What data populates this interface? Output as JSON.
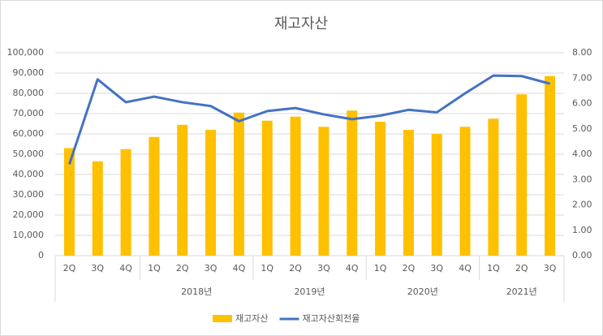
{
  "chart_data": {
    "type": "bar-line",
    "title": "재고자산",
    "categories": [
      "2Q",
      "3Q",
      "4Q",
      "1Q",
      "2Q",
      "3Q",
      "4Q",
      "1Q",
      "2Q",
      "3Q",
      "4Q",
      "1Q",
      "2Q",
      "3Q",
      "4Q",
      "1Q",
      "2Q",
      "3Q"
    ],
    "groups": [
      {
        "label": null,
        "size": 3
      },
      {
        "label": "2018년",
        "size": 4
      },
      {
        "label": "2019년",
        "size": 4
      },
      {
        "label": "2020년",
        "size": 4
      },
      {
        "label": "2021년",
        "size": 3
      }
    ],
    "series": [
      {
        "name": "재고자산",
        "type": "bar",
        "color": "#ffc000",
        "values": [
          53000,
          46500,
          52500,
          58500,
          64500,
          62000,
          70500,
          66500,
          68500,
          63500,
          71500,
          66000,
          62000,
          60000,
          63500,
          67500,
          79500,
          88500
        ]
      },
      {
        "name": "재고자산회전율",
        "type": "line",
        "axis": "y2",
        "color": "#4472c4",
        "values": [
          3.6,
          6.95,
          6.05,
          6.27,
          6.05,
          5.9,
          5.3,
          5.7,
          5.82,
          5.57,
          5.38,
          5.52,
          5.75,
          5.65,
          6.4,
          7.1,
          7.08,
          6.78
        ]
      }
    ],
    "ylim": [
      0,
      100000
    ],
    "yticks": [
      0,
      {
        "value": 10000,
        "label": "10,000"
      },
      {
        "value": 20000,
        "label": "20,000"
      },
      {
        "value": 30000,
        "label": "30,000"
      },
      {
        "value": 40000,
        "label": "40,000"
      },
      {
        "value": 50000,
        "label": "50,000"
      },
      {
        "value": 60000,
        "label": "60,000"
      },
      {
        "value": 70000,
        "label": "70,000"
      },
      {
        "value": 80000,
        "label": "80,000"
      },
      {
        "value": 90000,
        "label": "90,000"
      },
      {
        "value": 100000,
        "label": "100,000"
      }
    ],
    "y2lim": [
      0,
      8
    ],
    "y2ticks": [
      {
        "value": 0,
        "label": "0.00"
      },
      {
        "value": 1,
        "label": "1.00"
      },
      {
        "value": 2,
        "label": "2.00"
      },
      {
        "value": 3,
        "label": "3.00"
      },
      {
        "value": 4,
        "label": "4.00"
      },
      {
        "value": 5,
        "label": "5.00"
      },
      {
        "value": 6,
        "label": "6.00"
      },
      {
        "value": 7,
        "label": "7.00"
      },
      {
        "value": 8,
        "label": "8.00"
      }
    ],
    "grid": true,
    "legend": "bottom"
  }
}
